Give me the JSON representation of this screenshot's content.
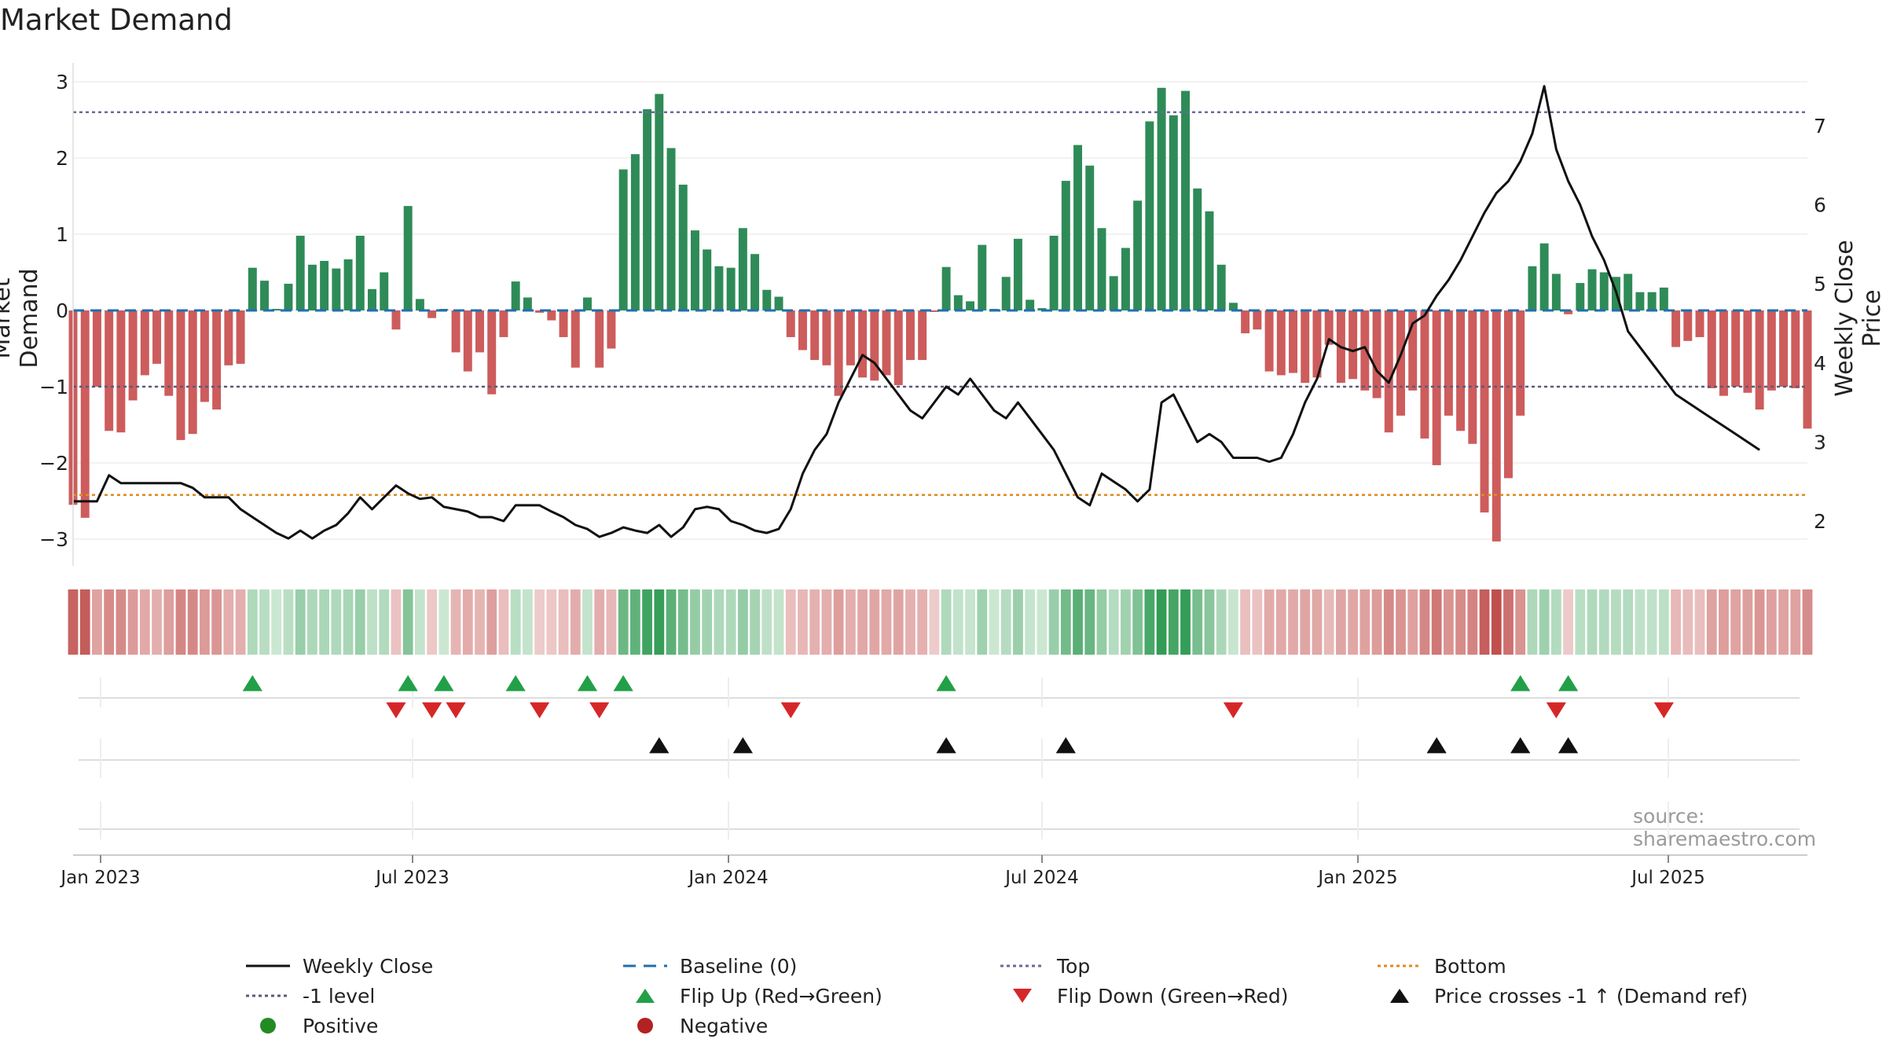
{
  "title": "Market Demand",
  "source_text": "source: sharemaestro.com",
  "chart_data": {
    "type": "bar",
    "title": "Market Demand",
    "ylabel_left": "Market Demand",
    "ylabel_right": "Weekly Close Price",
    "xlabel": "",
    "ylim_left": [
      -3.25,
      3.15
    ],
    "ylim_right": [
      1.4,
      7.55
    ],
    "left_ticks": [
      "3",
      "2",
      "1",
      "0",
      "−1",
      "−2",
      "−3"
    ],
    "right_ticks": [
      "7",
      "6",
      "5",
      "4",
      "3",
      "2"
    ],
    "x_ticks": [
      "Jan 2023",
      "Jul 2023",
      "Jan 2024",
      "Jul 2024",
      "Jan 2025",
      "Jul 2025"
    ],
    "reference_levels": {
      "top": 2.6,
      "minus_one": -1.0,
      "bottom": -2.42,
      "baseline": 0
    },
    "demand": [
      -2.55,
      -2.72,
      -1.0,
      -1.58,
      -1.6,
      -1.18,
      -0.85,
      -0.7,
      -1.12,
      -1.7,
      -1.62,
      -1.2,
      -1.3,
      -0.72,
      -0.7,
      0.56,
      0.39,
      0.02,
      0.35,
      0.98,
      0.6,
      0.65,
      0.55,
      0.67,
      0.98,
      0.28,
      0.5,
      -0.25,
      1.37,
      0.15,
      -0.1,
      0.02,
      -0.55,
      -0.8,
      -0.55,
      -1.1,
      -0.35,
      0.38,
      0.17,
      -0.03,
      -0.13,
      -0.35,
      -0.75,
      0.17,
      -0.75,
      -0.5,
      1.85,
      2.05,
      2.64,
      2.84,
      2.13,
      1.65,
      1.05,
      0.8,
      0.58,
      0.56,
      1.08,
      0.74,
      0.27,
      0.18,
      -0.35,
      -0.52,
      -0.65,
      -0.72,
      -1.12,
      -0.72,
      -0.88,
      -0.92,
      -0.85,
      -0.98,
      -0.65,
      -0.65,
      -0.02,
      0.57,
      0.2,
      0.12,
      0.86,
      0.02,
      0.44,
      0.94,
      0.14,
      0.03,
      0.98,
      1.7,
      2.17,
      1.9,
      1.08,
      0.45,
      0.82,
      1.44,
      2.48,
      2.92,
      2.56,
      2.88,
      1.6,
      1.3,
      0.6,
      0.1,
      -0.3,
      -0.25,
      -0.8,
      -0.85,
      -0.82,
      -0.95,
      -0.88,
      -0.45,
      -0.95,
      -0.9,
      -1.05,
      -1.15,
      -1.6,
      -1.38,
      -1.05,
      -1.68,
      -2.03,
      -1.38,
      -1.58,
      -1.75,
      -2.65,
      -3.03,
      -2.2,
      -1.38,
      0.58,
      0.88,
      0.48,
      -0.05,
      0.36,
      0.54,
      0.5,
      0.44,
      0.48,
      0.24,
      0.24,
      0.3,
      -0.48,
      -0.4,
      -0.35,
      -1.02,
      -1.12,
      -1.0,
      -1.08,
      -1.3,
      -1.05,
      -1.0,
      -1.02,
      -1.55
    ],
    "price": [
      2.25,
      2.25,
      2.25,
      2.58,
      2.48,
      2.48,
      2.48,
      2.48,
      2.48,
      2.48,
      2.42,
      2.3,
      2.3,
      2.3,
      2.15,
      2.05,
      1.95,
      1.85,
      1.78,
      1.88,
      1.78,
      1.88,
      1.95,
      2.1,
      2.3,
      2.15,
      2.3,
      2.45,
      2.35,
      2.28,
      2.3,
      2.18,
      2.15,
      2.12,
      2.05,
      2.05,
      2.0,
      2.2,
      2.2,
      2.2,
      2.12,
      2.05,
      1.95,
      1.9,
      1.8,
      1.85,
      1.92,
      1.88,
      1.85,
      1.95,
      1.8,
      1.92,
      2.15,
      2.18,
      2.15,
      2.0,
      1.95,
      1.88,
      1.85,
      1.9,
      2.15,
      2.6,
      2.9,
      3.1,
      3.5,
      3.8,
      4.1,
      4.0,
      3.8,
      3.6,
      3.4,
      3.3,
      3.5,
      3.7,
      3.6,
      3.8,
      3.6,
      3.4,
      3.3,
      3.5,
      3.3,
      3.1,
      2.9,
      2.6,
      2.3,
      2.2,
      2.6,
      2.5,
      2.4,
      2.25,
      2.4,
      3.5,
      3.6,
      3.3,
      3.0,
      3.1,
      3.0,
      2.8,
      2.8,
      2.8,
      2.75,
      2.8,
      3.1,
      3.5,
      3.8,
      4.3,
      4.2,
      4.15,
      4.2,
      3.9,
      3.75,
      4.1,
      4.5,
      4.6,
      4.85,
      5.05,
      5.3,
      5.6,
      5.9,
      6.15,
      6.3,
      6.55,
      6.9,
      7.5,
      6.7,
      6.3,
      6.0,
      5.6,
      5.3,
      4.9,
      4.4,
      4.2,
      4.0,
      3.8,
      3.6,
      3.5,
      3.4,
      3.3,
      3.2,
      3.1,
      3.0,
      2.9
    ],
    "flip_up_idx": [
      15,
      28,
      31,
      37,
      43,
      46,
      73,
      121,
      125
    ],
    "flip_down_idx": [
      27,
      30,
      32,
      39,
      44,
      60,
      97,
      124,
      133
    ],
    "cross_idx": [
      49,
      56,
      73,
      83,
      114,
      121,
      125
    ],
    "legend": [
      {
        "label": "Weekly Close",
        "symbol": "line-black"
      },
      {
        "label": "Baseline (0)",
        "symbol": "dash-blue"
      },
      {
        "label": "Top",
        "symbol": "dot-purple"
      },
      {
        "label": "Bottom",
        "symbol": "dot-orange"
      },
      {
        "label": "-1 level",
        "symbol": "dot-gray"
      },
      {
        "label": "Flip Up (Red→Green)",
        "symbol": "tri-up-green"
      },
      {
        "label": "Flip Down (Green→Red)",
        "symbol": "tri-down-red"
      },
      {
        "label": "Price crosses -1 ↑ (Demand ref)",
        "symbol": "tri-up-black"
      },
      {
        "label": "Positive",
        "symbol": "dot-green"
      },
      {
        "label": "Negative",
        "symbol": "dot-red"
      }
    ],
    "colors": {
      "positive": "#2e8b57",
      "negative": "#cd5c5c",
      "price_line": "#111111",
      "top_line": "#6a6a9a",
      "bottom_line": "#e08a1e",
      "minus_one_line": "#5a5a7a",
      "baseline": "#1f6fb0",
      "flip_up": "#22a047",
      "flip_down": "#d62728",
      "cross": "#111111"
    }
  }
}
